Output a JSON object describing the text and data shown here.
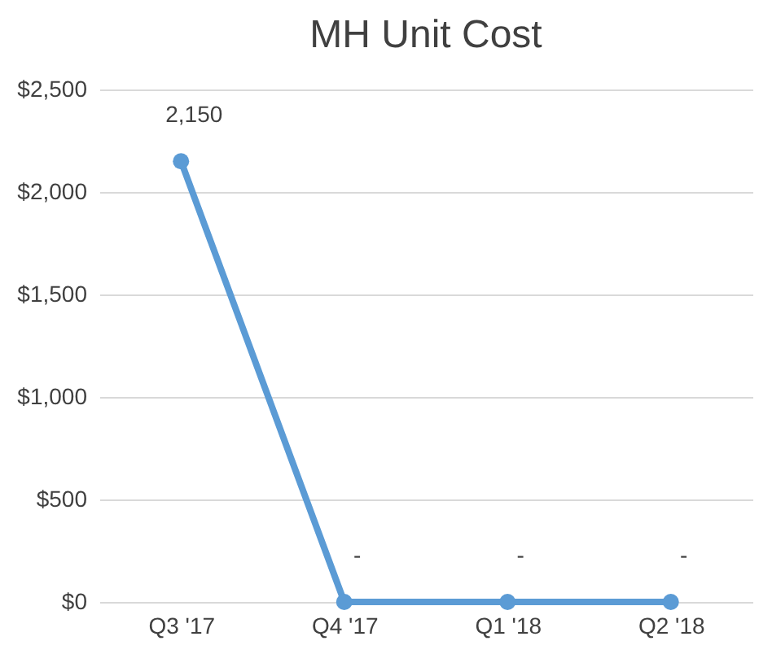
{
  "chart_data": {
    "type": "line",
    "title": "MH Unit Cost",
    "categories": [
      "Q3 '17",
      "Q4 '17",
      "Q1 '18",
      "Q2 '18"
    ],
    "series": [
      {
        "color": "#5b9bd5",
        "values": [
          2150,
          0,
          0,
          0
        ],
        "value_labels": [
          "2,150",
          "-",
          "-",
          "-"
        ]
      }
    ],
    "ylim": [
      0,
      2500
    ],
    "yticks": [
      {
        "value": 0,
        "label": "$0"
      },
      {
        "value": 500,
        "label": "$500"
      },
      {
        "value": 1000,
        "label": "$1,000"
      },
      {
        "value": 1500,
        "label": "$1,500"
      },
      {
        "value": 2000,
        "label": "$2,000"
      },
      {
        "value": 2500,
        "label": "$2,500"
      }
    ],
    "grid": "y",
    "marker": "circle",
    "line_style": "solid"
  }
}
